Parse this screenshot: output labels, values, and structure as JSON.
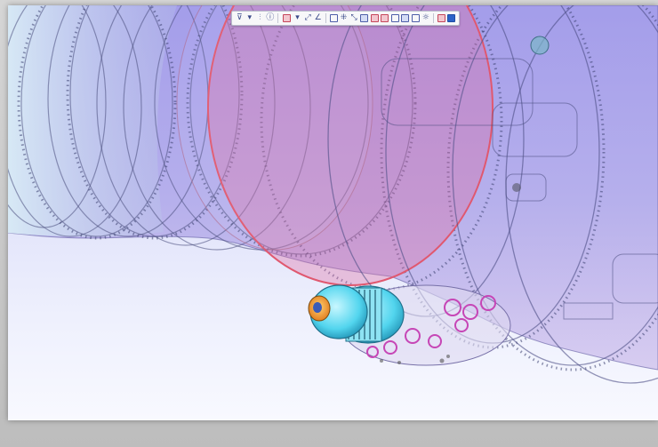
{
  "app": {
    "view": "3D assembly viewport"
  },
  "colors": {
    "background_top": "#d9dcf8",
    "background_bottom": "#f8f9ff",
    "housing_violet": "#8f86e0",
    "highlight_ring": "#e0586f",
    "part_cyan": "#5fdcf0",
    "part_orange": "#f0a020",
    "gear_magenta": "#d04ac0"
  },
  "toolbar": {
    "buttons": [
      {
        "name": "filter-icon"
      },
      {
        "name": "dropdown-arrow-icon"
      },
      {
        "name": "split-icon"
      },
      {
        "name": "info-icon"
      },
      {
        "name": "section-color-icon"
      },
      {
        "name": "dropdown-arrow-icon"
      },
      {
        "name": "measure-icon"
      },
      {
        "name": "measure-angle-icon"
      },
      {
        "name": "box-select-icon"
      },
      {
        "name": "explode-icon"
      },
      {
        "name": "transform-icon"
      },
      {
        "name": "view-box-icon"
      },
      {
        "name": "shade-red-icon"
      },
      {
        "name": "shade-red-edges-icon"
      },
      {
        "name": "wire-icon"
      },
      {
        "name": "hidden-line-icon"
      },
      {
        "name": "material-icon"
      },
      {
        "name": "light-icon"
      },
      {
        "name": "screenshot-icon"
      },
      {
        "name": "view-cube-icon"
      }
    ]
  }
}
